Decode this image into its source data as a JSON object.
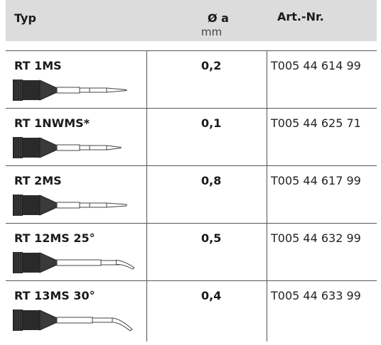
{
  "header": {
    "col_type": "Typ",
    "col_diameter": "Ø a",
    "col_diameter_unit": "mm",
    "col_article": "Art.-Nr."
  },
  "rows": [
    {
      "name": "RT 1MS",
      "diameter": "0,2",
      "article": "T005 44 614 99",
      "tip_icon": "straight-fine-tip-icon"
    },
    {
      "name": "RT 1NWMS*",
      "diameter": "0,1",
      "article": "T005 44 625 71",
      "tip_icon": "straight-fine-tip-icon"
    },
    {
      "name": "RT 2MS",
      "diameter": "0,8",
      "article": "T005 44 617 99",
      "tip_icon": "straight-fine-tip-icon"
    },
    {
      "name": "RT 12MS 25°",
      "diameter": "0,5",
      "article": "T005 44 632 99",
      "tip_icon": "bent-tip-icon"
    },
    {
      "name": "RT 13MS 30°",
      "diameter": "0,4",
      "article": "T005 44 633 99",
      "tip_icon": "bent-tip-icon"
    }
  ],
  "colors": {
    "header_background": "#dcdcdc",
    "grip": "#1e1e1e",
    "lines": "#555555"
  }
}
